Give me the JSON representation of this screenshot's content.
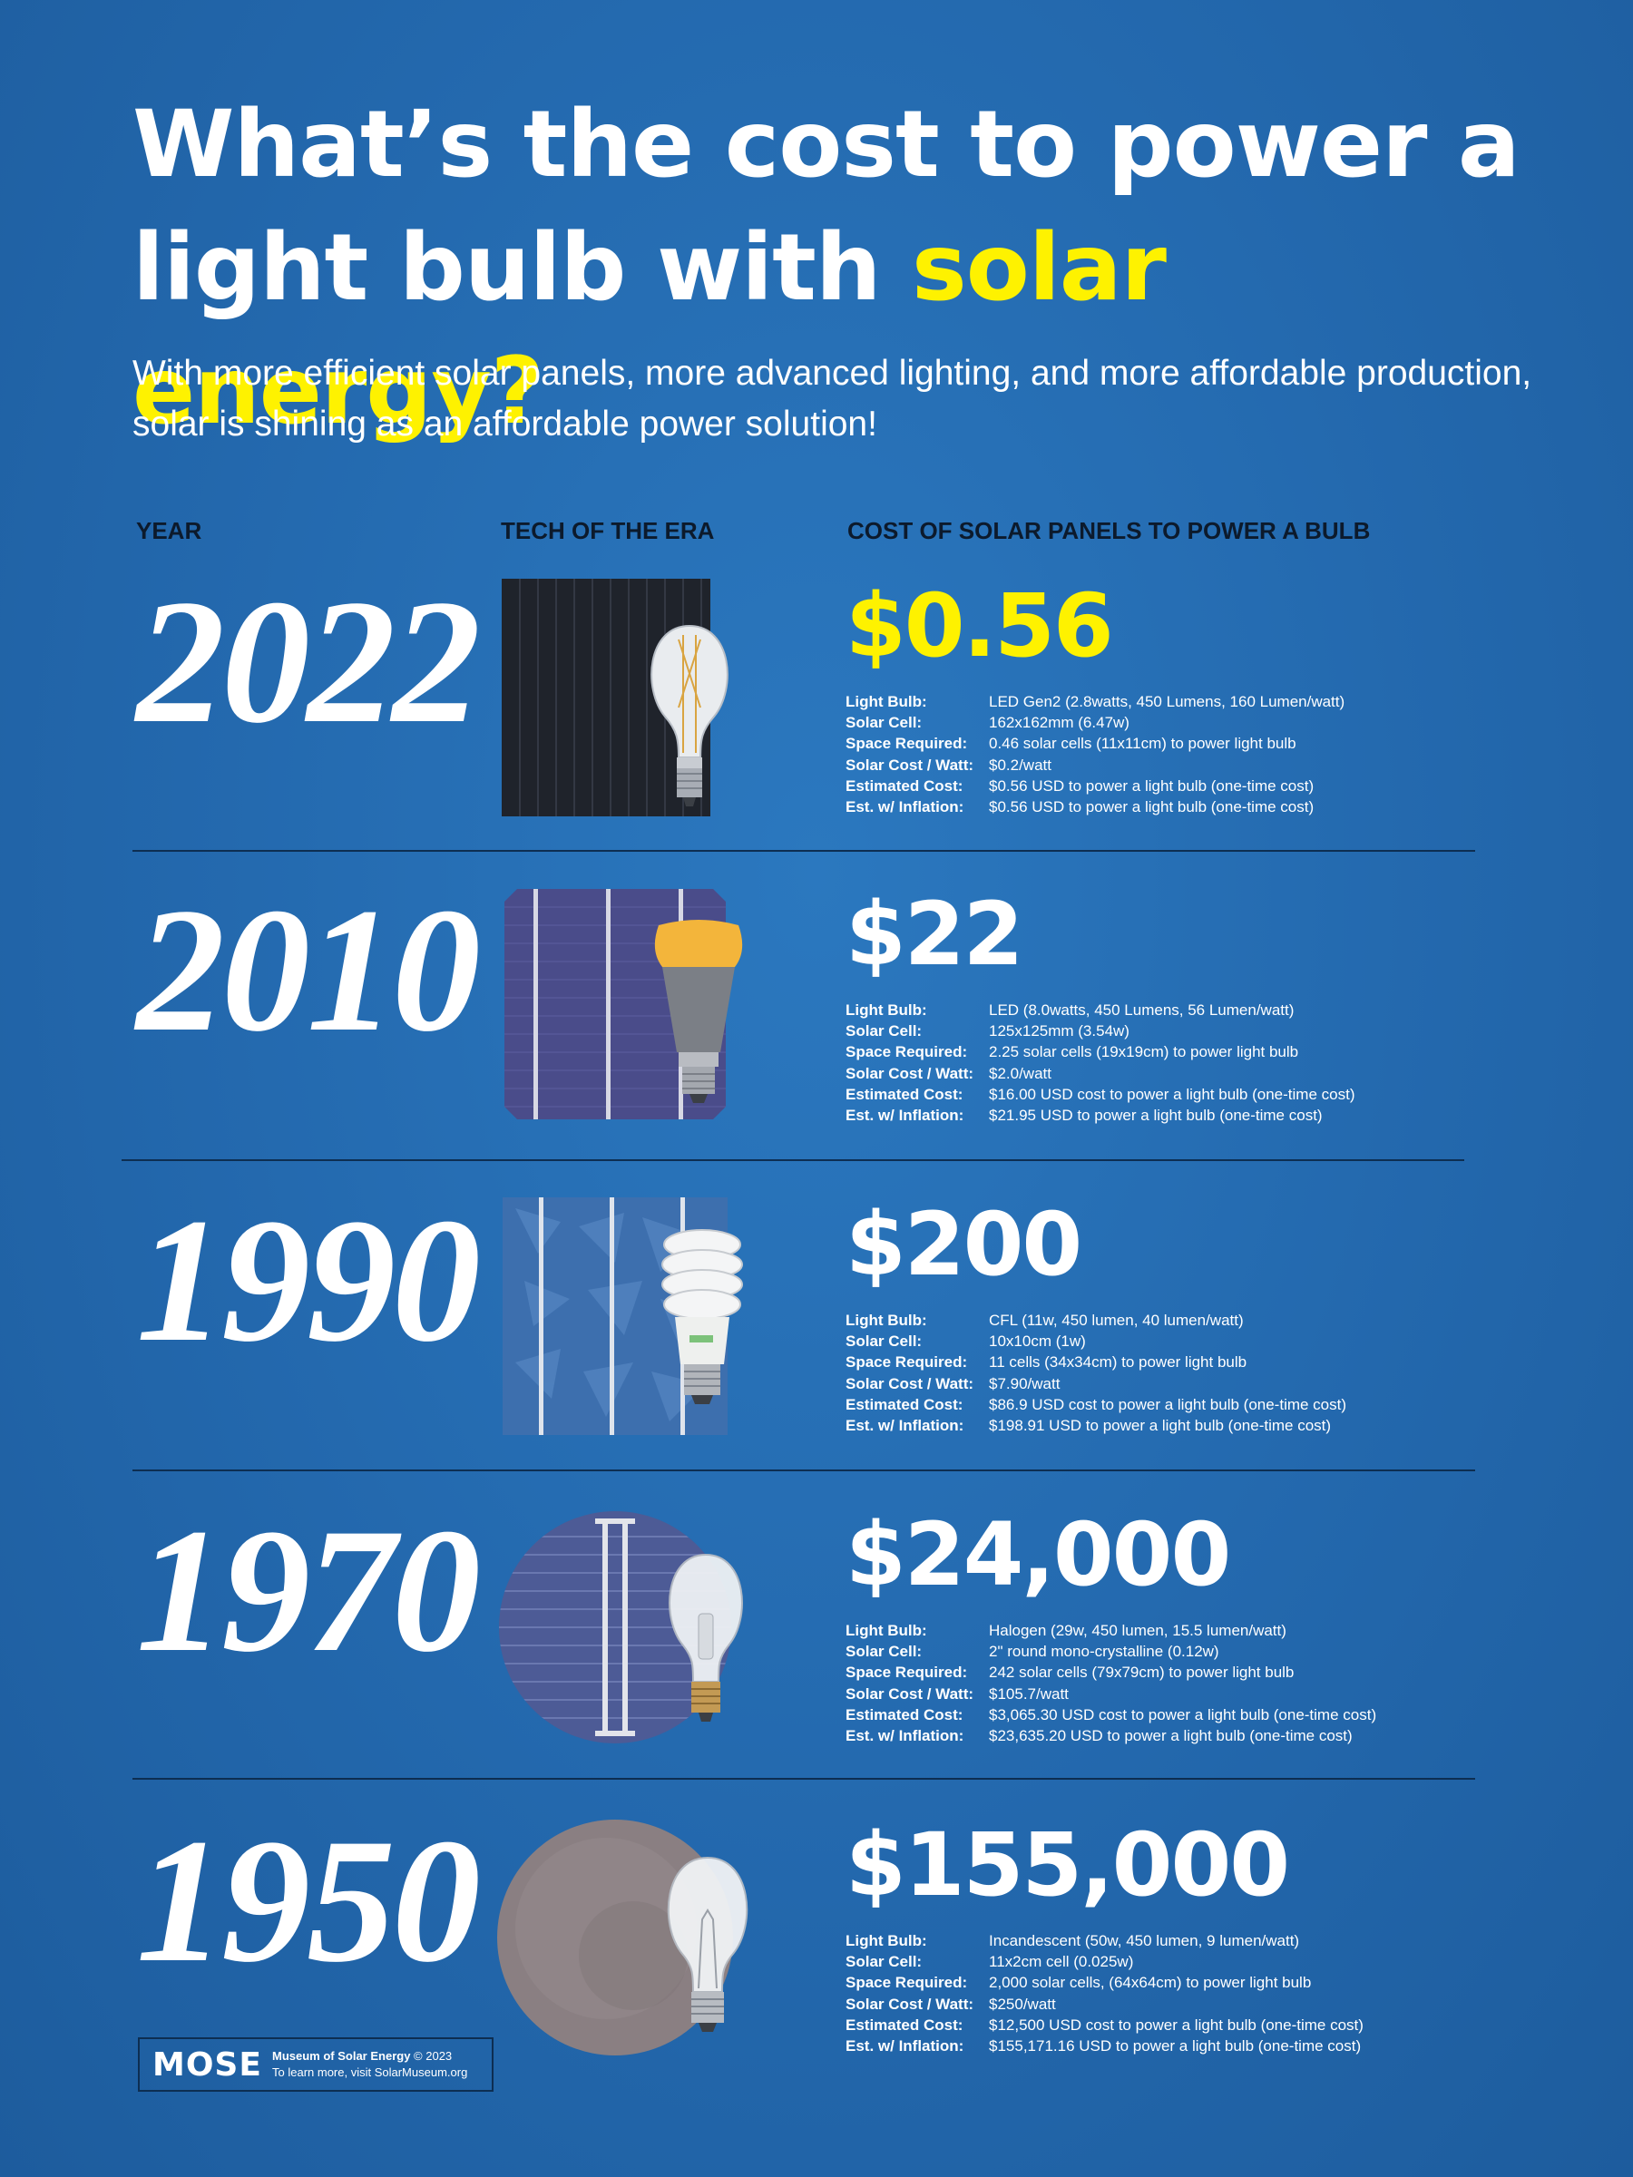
{
  "header": {
    "title_part1": "What’s the cost to power a light bulb with ",
    "title_highlight": "solar energy?",
    "subtitle": "With more efficient solar panels, more advanced lighting, and more affordable production, solar is shining as an affordable power solution!",
    "highlight_color": "#fef200"
  },
  "columns": {
    "year": "YEAR",
    "tech": "TECH OF THE ERA",
    "cost": "COST OF SOLAR PANELS TO POWER A BULB"
  },
  "spec_labels": {
    "bulb": "Light Bulb:",
    "cell": "Solar Cell:",
    "space": "Space Required:",
    "cost_watt": "Solar Cost / Watt:",
    "estimated": "Estimated Cost:",
    "inflation": "Est. w/ Inflation:"
  },
  "rows": [
    {
      "year": "2022",
      "price": "$0.56",
      "bulb": "LED Gen2 (2.8watts, 450 Lumens, 160 Lumen/watt)",
      "cell": "162x162mm (6.47w)",
      "space": "0.46 solar cells (11x11cm) to power light bulb",
      "cost_watt": "$0.2/watt",
      "estimated": "$0.56 USD to power a light bulb (one-time cost)",
      "inflation": "$0.56 USD to power a light bulb (one-time cost)"
    },
    {
      "year": "2010",
      "price": "$22",
      "bulb": "LED (8.0watts, 450 Lumens, 56 Lumen/watt)",
      "cell": "125x125mm (3.54w)",
      "space": "2.25 solar cells (19x19cm) to power light bulb",
      "cost_watt": "$2.0/watt",
      "estimated": "$16.00 USD cost to power a light bulb (one-time cost)",
      "inflation": "$21.95 USD to power a light bulb (one-time cost)"
    },
    {
      "year": "1990",
      "price": "$200",
      "bulb": "CFL (11w, 450 lumen, 40 lumen/watt)",
      "cell": "10x10cm (1w)",
      "space": "11 cells (34x34cm) to power light bulb",
      "cost_watt": "$7.90/watt",
      "estimated": "$86.9 USD cost to power a light bulb (one-time cost)",
      "inflation": "$198.91 USD to power a light bulb (one-time cost)"
    },
    {
      "year": "1970",
      "price": "$24,000",
      "bulb": "Halogen (29w, 450 lumen, 15.5 lumen/watt)",
      "cell": "2\" round mono-crystalline (0.12w)",
      "space": "242 solar cells (79x79cm) to power light bulb",
      "cost_watt": "$105.7/watt",
      "estimated": "$3,065.30 USD cost to power a light bulb (one-time cost)",
      "inflation": "$23,635.20 USD to power a light bulb (one-time cost)"
    },
    {
      "year": "1950",
      "price": "$155,000",
      "bulb": "Incandescent (50w, 450 lumen, 9 lumen/watt)",
      "cell": "11x2cm cell (0.025w)",
      "space": "2,000 solar cells, (64x64cm) to power light bulb",
      "cost_watt": "$250/watt",
      "estimated": "$12,500 USD cost to power a light bulb (one-time cost)",
      "inflation": "$155,171.16 USD to power a light bulb (one-time cost)"
    }
  ],
  "footer": {
    "logo": "MOSE",
    "org": "Museum of Solar Energy",
    "copyright": "© 2023",
    "visit": "To learn more, visit SolarMuseum.org"
  }
}
